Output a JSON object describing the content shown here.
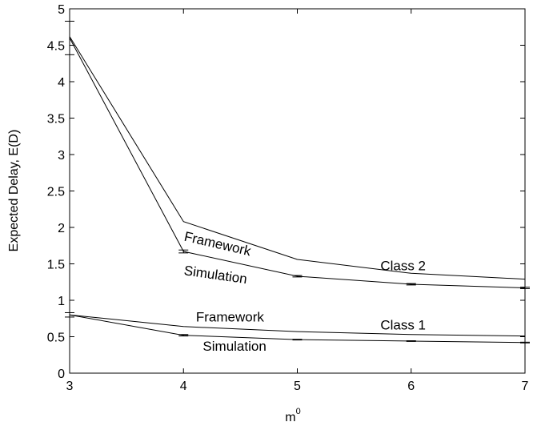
{
  "chart_data": {
    "type": "line",
    "xlabel": "m",
    "xlabel_sup": "0",
    "ylabel": "Expected Delay, E(D)",
    "xlim": [
      3,
      7
    ],
    "ylim": [
      0,
      5
    ],
    "x_ticks": [
      "3",
      "4",
      "5",
      "6",
      "7"
    ],
    "y_ticks": [
      "0",
      "0.5",
      "1",
      "1.5",
      "2",
      "2.5",
      "3",
      "3.5",
      "4",
      "4.5",
      "5"
    ],
    "grid": false,
    "x": [
      3,
      4,
      5,
      6,
      7
    ],
    "series": [
      {
        "values": [
          4.62,
          2.08,
          1.56,
          1.37,
          1.29
        ]
      },
      {
        "values": [
          4.6,
          1.67,
          1.33,
          1.22,
          1.17
        ],
        "error": [
          0.23,
          0.02,
          0.01,
          0.01,
          0.01
        ]
      },
      {
        "values": [
          0.8,
          0.64,
          0.57,
          0.53,
          0.51
        ]
      },
      {
        "values": [
          0.8,
          0.52,
          0.46,
          0.44,
          0.42
        ],
        "error": [
          0.03,
          0.01,
          0.005,
          0.005,
          0.005
        ]
      }
    ],
    "annotations": [
      {
        "text": "Framework",
        "x": 4.0,
        "y": 1.82,
        "rotate": 13
      },
      {
        "text": "Simulation",
        "x": 4.0,
        "y": 1.35,
        "rotate": 8
      },
      {
        "text": "Class 2",
        "x": 5.73,
        "y": 1.41,
        "rotate": 0
      },
      {
        "text": "Framework",
        "x": 4.11,
        "y": 0.71,
        "rotate": 0
      },
      {
        "text": "Simulation",
        "x": 4.17,
        "y": 0.31,
        "rotate": 0
      },
      {
        "text": "Class 1",
        "x": 5.73,
        "y": 0.6,
        "rotate": 0
      }
    ]
  }
}
